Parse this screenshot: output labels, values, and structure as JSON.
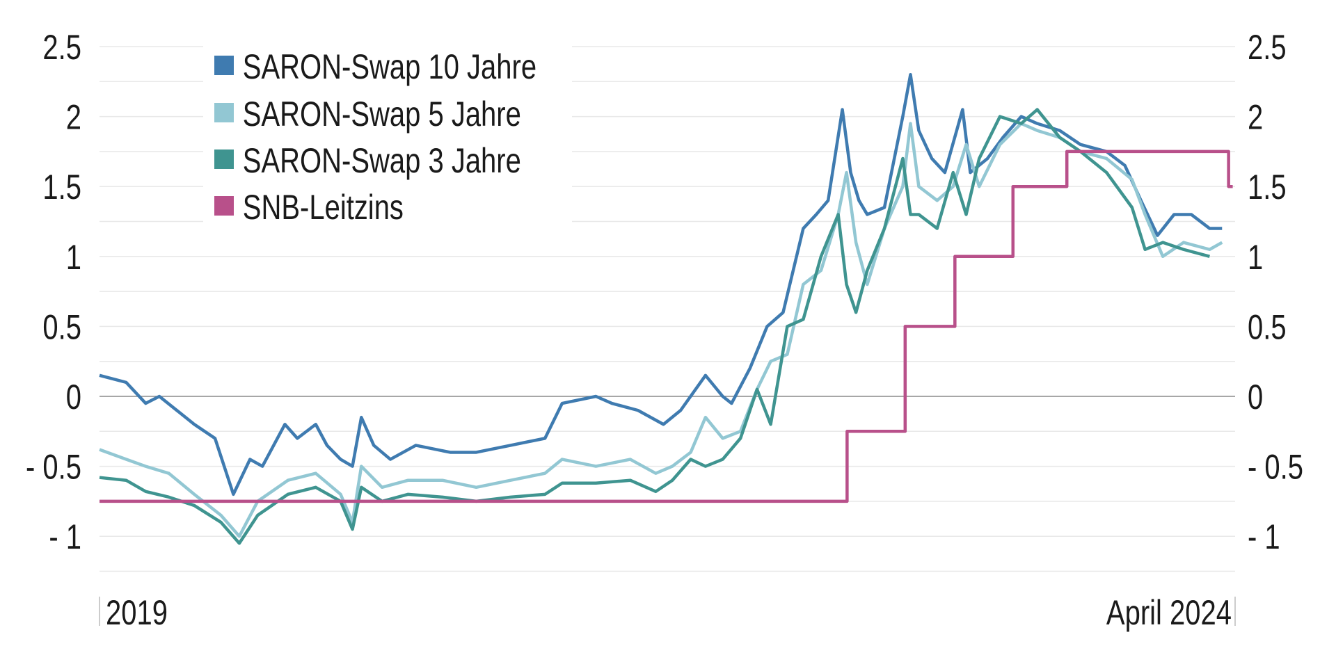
{
  "chart_data": {
    "type": "line",
    "title": "",
    "xlabel": "",
    "ylabel": "",
    "ylim": [
      -1.25,
      2.5
    ],
    "yticks": [
      2.5,
      2,
      1.5,
      1,
      0.5,
      0,
      -0.5,
      -1
    ],
    "ytick_labels": [
      "2.5",
      "2",
      "1.5",
      "1",
      "0.5",
      "0",
      "- 0.5",
      "- 1"
    ],
    "xlim": [
      "2019-01-01",
      "2024-04-01"
    ],
    "xtick_labels": [
      "2019",
      "April 2024"
    ],
    "grid": true,
    "gridline_step": 0.25,
    "zero_line": true,
    "dual_y_axis": true,
    "legend_position": "top-left",
    "series": [
      {
        "name": "SARON-Swap 10 Jahre",
        "color": "#3f7bb0",
        "points": [
          [
            "2019-01-01",
            0.15
          ],
          [
            "2019-02-15",
            0.1
          ],
          [
            "2019-03-20",
            -0.05
          ],
          [
            "2019-04-12",
            0.0
          ],
          [
            "2019-06-10",
            -0.2
          ],
          [
            "2019-07-15",
            -0.3
          ],
          [
            "2019-08-15",
            -0.7
          ],
          [
            "2019-09-12",
            -0.45
          ],
          [
            "2019-10-03",
            -0.5
          ],
          [
            "2019-11-10",
            -0.2
          ],
          [
            "2019-12-01",
            -0.3
          ],
          [
            "2020-01-01",
            -0.2
          ],
          [
            "2020-01-20",
            -0.35
          ],
          [
            "2020-02-12",
            -0.45
          ],
          [
            "2020-03-03",
            -0.5
          ],
          [
            "2020-03-18",
            -0.15
          ],
          [
            "2020-04-08",
            -0.35
          ],
          [
            "2020-05-06",
            -0.45
          ],
          [
            "2020-06-18",
            -0.35
          ],
          [
            "2020-08-15",
            -0.4
          ],
          [
            "2020-09-28",
            -0.4
          ],
          [
            "2020-11-25",
            -0.35
          ],
          [
            "2021-01-22",
            -0.3
          ],
          [
            "2021-02-20",
            -0.05
          ],
          [
            "2021-04-18",
            0.0
          ],
          [
            "2021-05-15",
            -0.05
          ],
          [
            "2021-06-28",
            -0.1
          ],
          [
            "2021-08-10",
            -0.2
          ],
          [
            "2021-09-08",
            -0.1
          ],
          [
            "2021-10-20",
            0.15
          ],
          [
            "2021-11-18",
            0.0
          ],
          [
            "2021-12-03",
            -0.05
          ],
          [
            "2022-01-03",
            0.2
          ],
          [
            "2022-02-01",
            0.5
          ],
          [
            "2022-02-28",
            0.6
          ],
          [
            "2022-04-03",
            1.2
          ],
          [
            "2022-04-25",
            1.3
          ],
          [
            "2022-05-15",
            1.4
          ],
          [
            "2022-06-08",
            2.05
          ],
          [
            "2022-06-22",
            1.6
          ],
          [
            "2022-07-06",
            1.4
          ],
          [
            "2022-07-20",
            1.3
          ],
          [
            "2022-08-18",
            1.35
          ],
          [
            "2022-09-18",
            2.0
          ],
          [
            "2022-10-01",
            2.3
          ],
          [
            "2022-10-15",
            1.9
          ],
          [
            "2022-11-06",
            1.7
          ],
          [
            "2022-11-28",
            1.6
          ],
          [
            "2022-12-28",
            2.05
          ],
          [
            "2023-01-10",
            1.6
          ],
          [
            "2023-02-08",
            1.7
          ],
          [
            "2023-03-06",
            1.85
          ],
          [
            "2023-04-06",
            2.0
          ],
          [
            "2023-05-03",
            1.95
          ],
          [
            "2023-06-10",
            1.9
          ],
          [
            "2023-07-15",
            1.8
          ],
          [
            "2023-08-28",
            1.75
          ],
          [
            "2023-09-28",
            1.65
          ],
          [
            "2023-10-25",
            1.4
          ],
          [
            "2023-11-22",
            1.15
          ],
          [
            "2023-12-20",
            1.3
          ],
          [
            "2024-01-18",
            1.3
          ],
          [
            "2024-02-18",
            1.2
          ],
          [
            "2024-03-10",
            1.2
          ]
        ]
      },
      {
        "name": "SARON-Swap 5 Jahre",
        "color": "#92c7d3",
        "points": [
          [
            "2019-01-01",
            -0.38
          ],
          [
            "2019-02-15",
            -0.45
          ],
          [
            "2019-03-20",
            -0.5
          ],
          [
            "2019-04-28",
            -0.55
          ],
          [
            "2019-06-10",
            -0.7
          ],
          [
            "2019-07-25",
            -0.85
          ],
          [
            "2019-08-25",
            -1.0
          ],
          [
            "2019-09-25",
            -0.75
          ],
          [
            "2019-11-15",
            -0.6
          ],
          [
            "2020-01-01",
            -0.55
          ],
          [
            "2020-02-12",
            -0.7
          ],
          [
            "2020-03-03",
            -0.9
          ],
          [
            "2020-03-18",
            -0.5
          ],
          [
            "2020-04-22",
            -0.65
          ],
          [
            "2020-06-05",
            -0.6
          ],
          [
            "2020-08-02",
            -0.6
          ],
          [
            "2020-09-28",
            -0.65
          ],
          [
            "2020-11-25",
            -0.6
          ],
          [
            "2021-01-22",
            -0.55
          ],
          [
            "2021-02-20",
            -0.45
          ],
          [
            "2021-04-18",
            -0.5
          ],
          [
            "2021-06-15",
            -0.45
          ],
          [
            "2021-07-28",
            -0.55
          ],
          [
            "2021-08-25",
            -0.5
          ],
          [
            "2021-09-25",
            -0.4
          ],
          [
            "2021-10-20",
            -0.15
          ],
          [
            "2021-11-18",
            -0.3
          ],
          [
            "2021-12-18",
            -0.25
          ],
          [
            "2022-01-15",
            0.05
          ],
          [
            "2022-02-07",
            0.25
          ],
          [
            "2022-03-07",
            0.3
          ],
          [
            "2022-04-03",
            0.8
          ],
          [
            "2022-05-03",
            0.9
          ],
          [
            "2022-06-01",
            1.3
          ],
          [
            "2022-06-15",
            1.6
          ],
          [
            "2022-07-01",
            1.1
          ],
          [
            "2022-07-20",
            0.8
          ],
          [
            "2022-08-18",
            1.2
          ],
          [
            "2022-09-18",
            1.5
          ],
          [
            "2022-10-01",
            1.95
          ],
          [
            "2022-10-15",
            1.5
          ],
          [
            "2022-11-15",
            1.4
          ],
          [
            "2022-12-12",
            1.5
          ],
          [
            "2023-01-03",
            1.8
          ],
          [
            "2023-01-25",
            1.5
          ],
          [
            "2023-03-01",
            1.8
          ],
          [
            "2023-04-06",
            1.95
          ],
          [
            "2023-05-03",
            1.9
          ],
          [
            "2023-06-10",
            1.85
          ],
          [
            "2023-07-15",
            1.75
          ],
          [
            "2023-08-28",
            1.7
          ],
          [
            "2023-10-10",
            1.55
          ],
          [
            "2023-11-01",
            1.3
          ],
          [
            "2023-12-01",
            1.0
          ],
          [
            "2024-01-05",
            1.1
          ],
          [
            "2024-02-18",
            1.05
          ],
          [
            "2024-03-10",
            1.1
          ]
        ]
      },
      {
        "name": "SARON-Swap 3 Jahre",
        "color": "#3f9490",
        "points": [
          [
            "2019-01-01",
            -0.58
          ],
          [
            "2019-02-15",
            -0.6
          ],
          [
            "2019-03-20",
            -0.68
          ],
          [
            "2019-04-28",
            -0.72
          ],
          [
            "2019-06-10",
            -0.78
          ],
          [
            "2019-07-25",
            -0.9
          ],
          [
            "2019-08-25",
            -1.05
          ],
          [
            "2019-09-25",
            -0.85
          ],
          [
            "2019-11-15",
            -0.7
          ],
          [
            "2020-01-01",
            -0.65
          ],
          [
            "2020-02-12",
            -0.75
          ],
          [
            "2020-03-03",
            -0.95
          ],
          [
            "2020-03-18",
            -0.65
          ],
          [
            "2020-04-22",
            -0.75
          ],
          [
            "2020-06-05",
            -0.7
          ],
          [
            "2020-08-02",
            -0.72
          ],
          [
            "2020-09-28",
            -0.75
          ],
          [
            "2020-11-25",
            -0.72
          ],
          [
            "2021-01-22",
            -0.7
          ],
          [
            "2021-02-20",
            -0.62
          ],
          [
            "2021-04-18",
            -0.62
          ],
          [
            "2021-06-15",
            -0.6
          ],
          [
            "2021-07-28",
            -0.68
          ],
          [
            "2021-08-25",
            -0.6
          ],
          [
            "2021-09-25",
            -0.45
          ],
          [
            "2021-10-20",
            -0.5
          ],
          [
            "2021-11-18",
            -0.45
          ],
          [
            "2021-12-18",
            -0.3
          ],
          [
            "2022-01-15",
            0.05
          ],
          [
            "2022-02-07",
            -0.2
          ],
          [
            "2022-03-07",
            0.5
          ],
          [
            "2022-04-03",
            0.55
          ],
          [
            "2022-05-03",
            1.0
          ],
          [
            "2022-06-01",
            1.3
          ],
          [
            "2022-06-15",
            0.8
          ],
          [
            "2022-07-01",
            0.6
          ],
          [
            "2022-07-20",
            0.9
          ],
          [
            "2022-08-18",
            1.2
          ],
          [
            "2022-09-18",
            1.7
          ],
          [
            "2022-10-01",
            1.3
          ],
          [
            "2022-10-15",
            1.3
          ],
          [
            "2022-11-15",
            1.2
          ],
          [
            "2022-12-12",
            1.6
          ],
          [
            "2023-01-03",
            1.3
          ],
          [
            "2023-01-25",
            1.7
          ],
          [
            "2023-03-01",
            2.0
          ],
          [
            "2023-04-06",
            1.95
          ],
          [
            "2023-05-03",
            2.05
          ],
          [
            "2023-06-10",
            1.85
          ],
          [
            "2023-07-15",
            1.75
          ],
          [
            "2023-08-28",
            1.6
          ],
          [
            "2023-10-10",
            1.35
          ],
          [
            "2023-11-01",
            1.05
          ],
          [
            "2023-12-01",
            1.1
          ],
          [
            "2024-01-05",
            1.05
          ],
          [
            "2024-02-18",
            1.0
          ]
        ]
      },
      {
        "name": "SNB-Leitzins",
        "color": "#b8508a",
        "step": true,
        "points": [
          [
            "2019-01-01",
            -0.75
          ],
          [
            "2022-06-16",
            -0.25
          ],
          [
            "2022-09-22",
            0.5
          ],
          [
            "2022-12-15",
            1.0
          ],
          [
            "2023-03-23",
            1.5
          ],
          [
            "2023-06-22",
            1.75
          ],
          [
            "2024-03-21",
            1.5
          ],
          [
            "2024-03-28",
            1.5
          ]
        ]
      }
    ]
  }
}
